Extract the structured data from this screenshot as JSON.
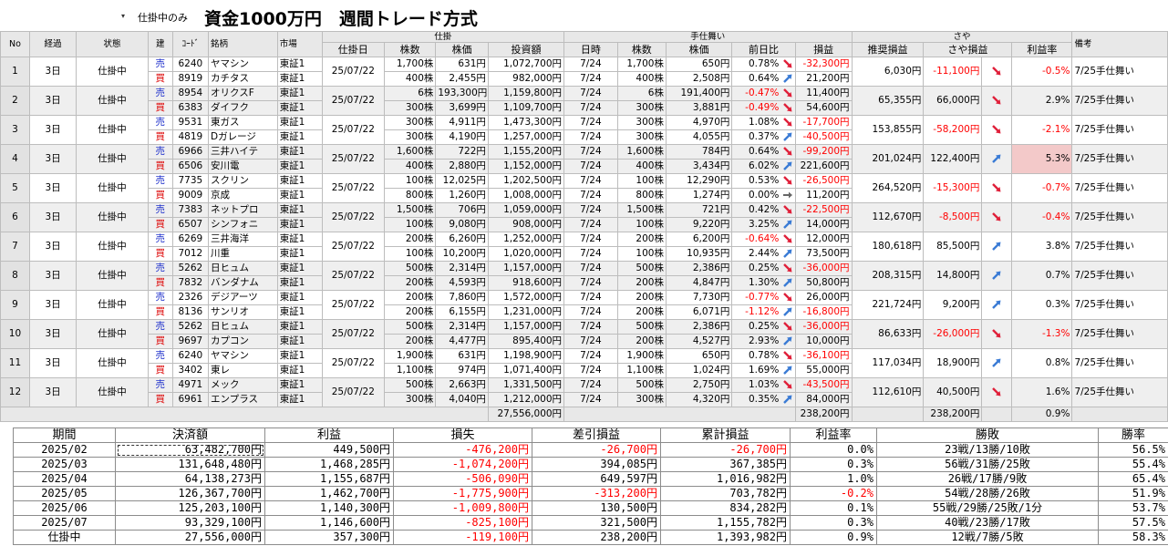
{
  "filter": {
    "dropdown_arrow": "▾",
    "label": "仕掛中のみ"
  },
  "title": "資金1000万円　週間トレード方式",
  "header": {
    "groups": {
      "shikake": "仕掛",
      "tejimai": "手仕舞い",
      "saya": "さや"
    },
    "columns": {
      "no": "No",
      "keika": "経過",
      "jotai": "状態",
      "tate": "建",
      "code": "ｺｰﾄﾞ",
      "meigara": "銘柄",
      "shijo": "市場",
      "shikakebi": "仕掛日",
      "kabusu": "株数",
      "kabuka": "株価",
      "toushigaku": "投資額",
      "nichiji": "日時",
      "t_kabusu": "株数",
      "t_kabuka": "株価",
      "zenjitsuhi": "前日比",
      "soneki": "損益",
      "suisho": "推奨損益",
      "saya_soneki": "さや損益",
      "rieki_ritsu": "利益率",
      "biko": "備考"
    }
  },
  "trades": [
    {
      "no": "1",
      "keika": "3日",
      "jotai": "仕掛中",
      "date": "25/07/22",
      "suisho": "6,030円",
      "saya": "-11,100円",
      "saya_dir": "down",
      "rate": "-0.5%",
      "note": "7/25手仕舞い",
      "legs": [
        {
          "side": "売",
          "code": "6240",
          "name": "ヤマシン",
          "market": "東証1",
          "shares": "1,700株",
          "price": "631円",
          "amount": "1,072,700円",
          "t_date": "7/24",
          "t_shares": "1,700株",
          "t_price": "650円",
          "chg": "0.78%",
          "dir": "down",
          "pl": "-32,300円"
        },
        {
          "side": "買",
          "code": "8919",
          "name": "カチタス",
          "market": "東証1",
          "shares": "400株",
          "price": "2,455円",
          "amount": "982,000円",
          "t_date": "7/24",
          "t_shares": "400株",
          "t_price": "2,508円",
          "chg": "0.64%",
          "dir": "up",
          "pl": "21,200円"
        }
      ]
    },
    {
      "no": "2",
      "keika": "3日",
      "jotai": "仕掛中",
      "date": "25/07/22",
      "suisho": "65,355円",
      "saya": "66,000円",
      "saya_dir": "down",
      "rate": "2.9%",
      "note": "7/25手仕舞い",
      "legs": [
        {
          "side": "売",
          "code": "8954",
          "name": "オリクスF",
          "market": "東証1",
          "shares": "6株",
          "price": "193,300円",
          "amount": "1,159,800円",
          "t_date": "7/24",
          "t_shares": "6株",
          "t_price": "191,400円",
          "chg": "-0.47%",
          "dir": "down",
          "pl": "11,400円"
        },
        {
          "side": "買",
          "code": "6383",
          "name": "ダイフク",
          "market": "東証1",
          "shares": "300株",
          "price": "3,699円",
          "amount": "1,109,700円",
          "t_date": "7/24",
          "t_shares": "300株",
          "t_price": "3,881円",
          "chg": "-0.49%",
          "dir": "down",
          "pl": "54,600円"
        }
      ]
    },
    {
      "no": "3",
      "keika": "3日",
      "jotai": "仕掛中",
      "date": "25/07/22",
      "suisho": "153,855円",
      "saya": "-58,200円",
      "saya_dir": "down",
      "rate": "-2.1%",
      "note": "7/25手仕舞い",
      "legs": [
        {
          "side": "売",
          "code": "9531",
          "name": "東ガス",
          "market": "東証1",
          "shares": "300株",
          "price": "4,911円",
          "amount": "1,473,300円",
          "t_date": "7/24",
          "t_shares": "300株",
          "t_price": "4,970円",
          "chg": "1.08%",
          "dir": "down",
          "pl": "-17,700円"
        },
        {
          "side": "買",
          "code": "4819",
          "name": "Dガレージ",
          "market": "東証1",
          "shares": "300株",
          "price": "4,190円",
          "amount": "1,257,000円",
          "t_date": "7/24",
          "t_shares": "300株",
          "t_price": "4,055円",
          "chg": "0.37%",
          "dir": "up",
          "pl": "-40,500円"
        }
      ]
    },
    {
      "no": "4",
      "keika": "3日",
      "jotai": "仕掛中",
      "date": "25/07/22",
      "suisho": "201,024円",
      "saya": "122,400円",
      "saya_dir": "up",
      "rate": "5.3%",
      "note": "7/25手仕舞い",
      "highlight": true,
      "legs": [
        {
          "side": "売",
          "code": "6966",
          "name": "三井ハイテ",
          "market": "東証1",
          "shares": "1,600株",
          "price": "722円",
          "amount": "1,155,200円",
          "t_date": "7/24",
          "t_shares": "1,600株",
          "t_price": "784円",
          "chg": "0.64%",
          "dir": "down",
          "pl": "-99,200円"
        },
        {
          "side": "買",
          "code": "6506",
          "name": "安川電",
          "market": "東証1",
          "shares": "400株",
          "price": "2,880円",
          "amount": "1,152,000円",
          "t_date": "7/24",
          "t_shares": "400株",
          "t_price": "3,434円",
          "chg": "6.02%",
          "dir": "up",
          "pl": "221,600円"
        }
      ]
    },
    {
      "no": "5",
      "keika": "3日",
      "jotai": "仕掛中",
      "date": "25/07/22",
      "suisho": "264,520円",
      "saya": "-15,300円",
      "saya_dir": "down",
      "rate": "-0.7%",
      "note": "7/25手仕舞い",
      "legs": [
        {
          "side": "売",
          "code": "7735",
          "name": "スクリン",
          "market": "東証1",
          "shares": "100株",
          "price": "12,025円",
          "amount": "1,202,500円",
          "t_date": "7/24",
          "t_shares": "100株",
          "t_price": "12,290円",
          "chg": "0.53%",
          "dir": "down",
          "pl": "-26,500円"
        },
        {
          "side": "買",
          "code": "9009",
          "name": "京成",
          "market": "東証1",
          "shares": "800株",
          "price": "1,260円",
          "amount": "1,008,000円",
          "t_date": "7/24",
          "t_shares": "800株",
          "t_price": "1,274円",
          "chg": "0.00%",
          "dir": "flat",
          "pl": "11,200円"
        }
      ]
    },
    {
      "no": "6",
      "keika": "3日",
      "jotai": "仕掛中",
      "date": "25/07/22",
      "suisho": "112,670円",
      "saya": "-8,500円",
      "saya_dir": "down",
      "rate": "-0.4%",
      "note": "7/25手仕舞い",
      "legs": [
        {
          "side": "売",
          "code": "7383",
          "name": "ネットプロ",
          "market": "東証1",
          "shares": "1,500株",
          "price": "706円",
          "amount": "1,059,000円",
          "t_date": "7/24",
          "t_shares": "1,500株",
          "t_price": "721円",
          "chg": "0.42%",
          "dir": "down",
          "pl": "-22,500円"
        },
        {
          "side": "買",
          "code": "6507",
          "name": "シンフォニ",
          "market": "東証1",
          "shares": "100株",
          "price": "9,080円",
          "amount": "908,000円",
          "t_date": "7/24",
          "t_shares": "100株",
          "t_price": "9,220円",
          "chg": "3.25%",
          "dir": "up",
          "pl": "14,000円"
        }
      ]
    },
    {
      "no": "7",
      "keika": "3日",
      "jotai": "仕掛中",
      "date": "25/07/22",
      "suisho": "180,618円",
      "saya": "85,500円",
      "saya_dir": "up",
      "rate": "3.8%",
      "note": "7/25手仕舞い",
      "legs": [
        {
          "side": "売",
          "code": "6269",
          "name": "三井海洋",
          "market": "東証1",
          "shares": "200株",
          "price": "6,260円",
          "amount": "1,252,000円",
          "t_date": "7/24",
          "t_shares": "200株",
          "t_price": "6,200円",
          "chg": "-0.64%",
          "dir": "down",
          "pl": "12,000円"
        },
        {
          "side": "買",
          "code": "7012",
          "name": "川重",
          "market": "東証1",
          "shares": "100株",
          "price": "10,200円",
          "amount": "1,020,000円",
          "t_date": "7/24",
          "t_shares": "100株",
          "t_price": "10,935円",
          "chg": "2.44%",
          "dir": "up",
          "pl": "73,500円"
        }
      ]
    },
    {
      "no": "8",
      "keika": "3日",
      "jotai": "仕掛中",
      "date": "25/07/22",
      "suisho": "208,315円",
      "saya": "14,800円",
      "saya_dir": "up",
      "rate": "0.7%",
      "note": "7/25手仕舞い",
      "legs": [
        {
          "side": "売",
          "code": "5262",
          "name": "日ヒュム",
          "market": "東証1",
          "shares": "500株",
          "price": "2,314円",
          "amount": "1,157,000円",
          "t_date": "7/24",
          "t_shares": "500株",
          "t_price": "2,386円",
          "chg": "0.25%",
          "dir": "down",
          "pl": "-36,000円"
        },
        {
          "side": "買",
          "code": "7832",
          "name": "バンダナム",
          "market": "東証1",
          "shares": "200株",
          "price": "4,593円",
          "amount": "918,600円",
          "t_date": "7/24",
          "t_shares": "200株",
          "t_price": "4,847円",
          "chg": "1.30%",
          "dir": "up",
          "pl": "50,800円"
        }
      ]
    },
    {
      "no": "9",
      "keika": "3日",
      "jotai": "仕掛中",
      "date": "25/07/22",
      "suisho": "221,724円",
      "saya": "9,200円",
      "saya_dir": "up",
      "rate": "0.3%",
      "note": "7/25手仕舞い",
      "legs": [
        {
          "side": "売",
          "code": "2326",
          "name": "デジアーツ",
          "market": "東証1",
          "shares": "200株",
          "price": "7,860円",
          "amount": "1,572,000円",
          "t_date": "7/24",
          "t_shares": "200株",
          "t_price": "7,730円",
          "chg": "-0.77%",
          "dir": "down",
          "pl": "26,000円"
        },
        {
          "side": "買",
          "code": "8136",
          "name": "サンリオ",
          "market": "東証1",
          "shares": "200株",
          "price": "6,155円",
          "amount": "1,231,000円",
          "t_date": "7/24",
          "t_shares": "200株",
          "t_price": "6,071円",
          "chg": "-1.12%",
          "dir": "up",
          "pl": "-16,800円"
        }
      ]
    },
    {
      "no": "10",
      "keika": "3日",
      "jotai": "仕掛中",
      "date": "25/07/22",
      "suisho": "86,633円",
      "saya": "-26,000円",
      "saya_dir": "down",
      "rate": "-1.3%",
      "note": "7/25手仕舞い",
      "legs": [
        {
          "side": "売",
          "code": "5262",
          "name": "日ヒュム",
          "market": "東証1",
          "shares": "500株",
          "price": "2,314円",
          "amount": "1,157,000円",
          "t_date": "7/24",
          "t_shares": "500株",
          "t_price": "2,386円",
          "chg": "0.25%",
          "dir": "down",
          "pl": "-36,000円"
        },
        {
          "side": "買",
          "code": "9697",
          "name": "カプコン",
          "market": "東証1",
          "shares": "200株",
          "price": "4,477円",
          "amount": "895,400円",
          "t_date": "7/24",
          "t_shares": "200株",
          "t_price": "4,527円",
          "chg": "2.93%",
          "dir": "up",
          "pl": "10,000円"
        }
      ]
    },
    {
      "no": "11",
      "keika": "3日",
      "jotai": "仕掛中",
      "date": "25/07/22",
      "suisho": "117,034円",
      "saya": "18,900円",
      "saya_dir": "up",
      "rate": "0.8%",
      "note": "7/25手仕舞い",
      "legs": [
        {
          "side": "売",
          "code": "6240",
          "name": "ヤマシン",
          "market": "東証1",
          "shares": "1,900株",
          "price": "631円",
          "amount": "1,198,900円",
          "t_date": "7/24",
          "t_shares": "1,900株",
          "t_price": "650円",
          "chg": "0.78%",
          "dir": "down",
          "pl": "-36,100円"
        },
        {
          "side": "買",
          "code": "3402",
          "name": "東レ",
          "market": "東証1",
          "shares": "1,100株",
          "price": "974円",
          "amount": "1,071,400円",
          "t_date": "7/24",
          "t_shares": "1,100株",
          "t_price": "1,024円",
          "chg": "1.69%",
          "dir": "up",
          "pl": "55,000円"
        }
      ]
    },
    {
      "no": "12",
      "keika": "3日",
      "jotai": "仕掛中",
      "date": "25/07/22",
      "suisho": "112,610円",
      "saya": "40,500円",
      "saya_dir": "down",
      "rate": "1.6%",
      "note": "7/25手仕舞い",
      "legs": [
        {
          "side": "売",
          "code": "4971",
          "name": "メック",
          "market": "東証1",
          "shares": "500株",
          "price": "2,663円",
          "amount": "1,331,500円",
          "t_date": "7/24",
          "t_shares": "500株",
          "t_price": "2,750円",
          "chg": "1.03%",
          "dir": "down",
          "pl": "-43,500円"
        },
        {
          "side": "買",
          "code": "6961",
          "name": "エンプラス",
          "market": "東証1",
          "shares": "300株",
          "price": "4,040円",
          "amount": "1,212,000円",
          "t_date": "7/24",
          "t_shares": "300株",
          "t_price": "4,320円",
          "chg": "0.35%",
          "dir": "up",
          "pl": "84,000円"
        }
      ]
    }
  ],
  "totals": {
    "amount": "27,556,000円",
    "pl": "238,200円",
    "saya": "238,200円",
    "rate": "0.9%"
  },
  "summary": {
    "headers": {
      "period": "期間",
      "settlement": "決済額",
      "profit": "利益",
      "loss": "損失",
      "net": "差引損益",
      "cumulative": "累計損益",
      "rate": "利益率",
      "record": "勝敗",
      "win_rate": "勝率"
    },
    "rows": [
      {
        "period": "2025/02",
        "settlement": "63,482,700円",
        "profit": "449,500円",
        "loss": "-476,200円",
        "net": "-26,700円",
        "cumulative": "-26,700円",
        "rate": "0.0%",
        "record": "23戦/13勝/10敗",
        "win_rate": "56.5%"
      },
      {
        "period": "2025/03",
        "settlement": "131,648,480円",
        "profit": "1,468,285円",
        "loss": "-1,074,200円",
        "net": "394,085円",
        "cumulative": "367,385円",
        "rate": "0.3%",
        "record": "56戦/31勝/25敗",
        "win_rate": "55.4%"
      },
      {
        "period": "2025/04",
        "settlement": "64,138,273円",
        "profit": "1,155,687円",
        "loss": "-506,090円",
        "net": "649,597円",
        "cumulative": "1,016,982円",
        "rate": "1.0%",
        "record": "26戦/17勝/9敗",
        "win_rate": "65.4%"
      },
      {
        "period": "2025/05",
        "settlement": "126,367,700円",
        "profit": "1,462,700円",
        "loss": "-1,775,900円",
        "net": "-313,200円",
        "cumulative": "703,782円",
        "rate": "-0.2%",
        "record": "54戦/28勝/26敗",
        "win_rate": "51.9%"
      },
      {
        "period": "2025/06",
        "settlement": "125,203,100円",
        "profit": "1,140,300円",
        "loss": "-1,009,800円",
        "net": "130,500円",
        "cumulative": "834,282円",
        "rate": "0.1%",
        "record": "55戦/29勝/25敗/1分",
        "win_rate": "53.7%"
      },
      {
        "period": "2025/07",
        "settlement": "93,329,100円",
        "profit": "1,146,600円",
        "loss": "-825,100円",
        "net": "321,500円",
        "cumulative": "1,155,782円",
        "rate": "0.3%",
        "record": "40戦/23勝/17敗",
        "win_rate": "57.5%"
      },
      {
        "period": "仕掛中",
        "settlement": "27,556,000円",
        "profit": "357,300円",
        "loss": "-119,100円",
        "net": "238,200円",
        "cumulative": "1,393,982円",
        "rate": "0.9%",
        "record": "12戦/7勝/5敗",
        "win_rate": "58.3%"
      }
    ]
  },
  "colors": {
    "up_arrow": "#3a7bd5",
    "down_arrow": "#e0203a",
    "flat_arrow": "#666666",
    "negative": "#ff0000",
    "sell": "#2233cc",
    "buy": "#dd0000",
    "highlight": "#f3c9c9"
  }
}
